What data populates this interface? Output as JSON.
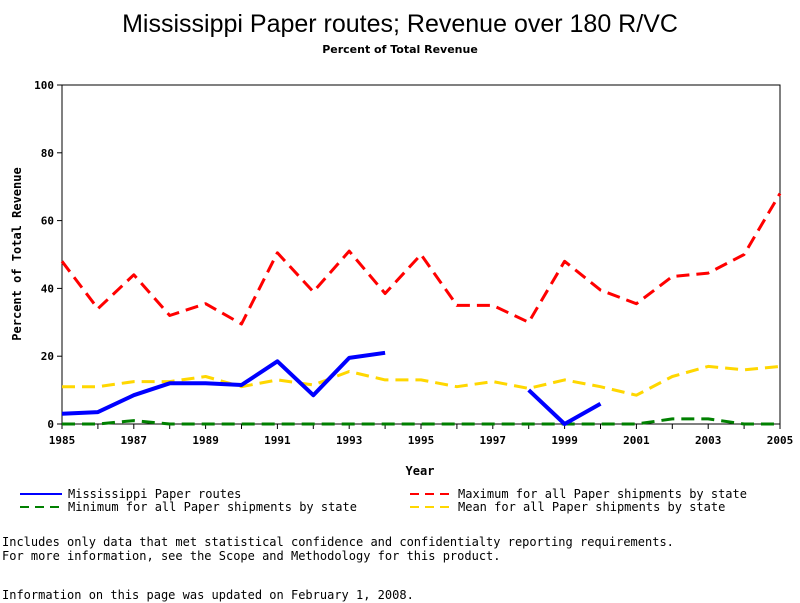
{
  "chart_data": {
    "type": "line",
    "title": "Mississippi Paper routes; Revenue over 180 R/VC",
    "subtitle": "Percent of Total Revenue",
    "xlabel": "Year",
    "ylabel": "Percent of Total Revenue",
    "xlim": [
      1985,
      2005
    ],
    "ylim": [
      0,
      100
    ],
    "x_ticks": [
      "1985",
      "1987",
      "1989",
      "1991",
      "1993",
      "1995",
      "1997",
      "1999",
      "2001",
      "2003",
      "2005"
    ],
    "y_ticks": [
      "0",
      "20",
      "40",
      "60",
      "80",
      "100"
    ],
    "x": [
      1985,
      1986,
      1987,
      1988,
      1989,
      1990,
      1991,
      1992,
      1993,
      1994,
      1995,
      1996,
      1997,
      1998,
      1999,
      2000,
      2001,
      2002,
      2003,
      2004,
      2005
    ],
    "series": [
      {
        "name": "Mississippi Paper routes",
        "color": "#0000ff",
        "dash": "solid",
        "values": [
          3,
          3.5,
          8.5,
          12,
          12,
          11.5,
          18.5,
          8.5,
          19.5,
          21,
          null,
          null,
          null,
          10,
          0,
          6,
          null,
          null,
          null,
          null,
          null
        ]
      },
      {
        "name": "Maximum for all Paper shipments by state",
        "color": "#ff0000",
        "dash": "dashed",
        "values": [
          48,
          34,
          44,
          32,
          35.5,
          29.5,
          50.5,
          39,
          51,
          38.5,
          50,
          35,
          35,
          30,
          48,
          39.5,
          35.5,
          43.5,
          44.5,
          50,
          68
        ]
      },
      {
        "name": "Minimum for all Paper shipments by state",
        "color": "#008000",
        "dash": "dashed",
        "values": [
          0,
          0,
          1,
          0,
          0,
          0,
          0,
          0,
          0,
          0,
          0,
          0,
          0,
          0,
          0,
          0,
          0,
          1.5,
          1.5,
          0,
          0
        ]
      },
      {
        "name": "Mean for all Paper shipments by state",
        "color": "#ffd700",
        "dash": "dashed",
        "values": [
          11,
          11,
          12.5,
          12.5,
          14,
          11,
          13,
          11.5,
          15.5,
          13,
          13,
          11,
          12.5,
          10.5,
          13,
          11,
          8.5,
          14,
          17,
          16,
          17
        ]
      }
    ],
    "legend_placement": "bottom"
  },
  "notes": {
    "line1": "Includes only data that met statistical confidence and confidentialty reporting requirements.",
    "line2": "For more information, see the Scope and Methodology for this product.",
    "updated": "Information on this page was updated on February 1, 2008."
  }
}
